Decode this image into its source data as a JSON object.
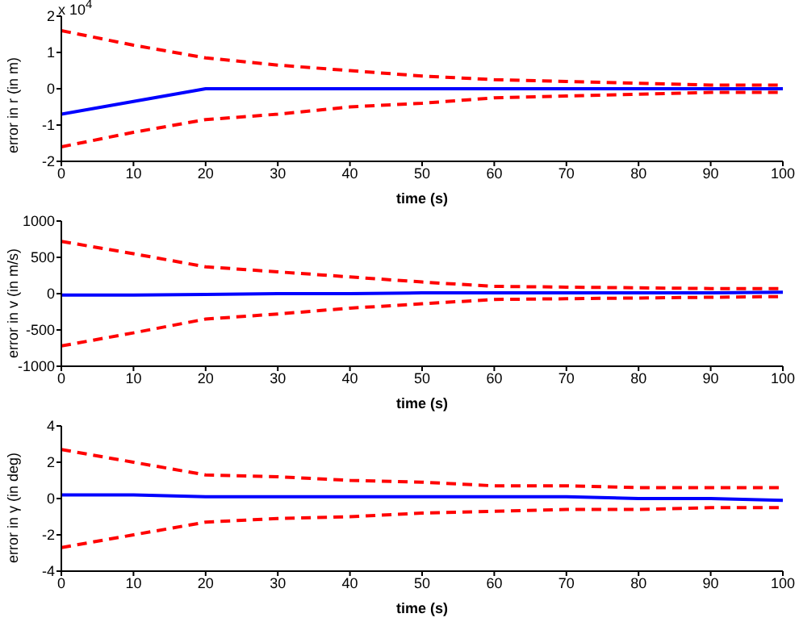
{
  "chart_data": [
    {
      "type": "line",
      "xlabel": "time (s)",
      "ylabel": "error in r (in m)",
      "annotations": [
        "x 10$^{4}$"
      ],
      "x": [
        0,
        10,
        20,
        30,
        40,
        50,
        60,
        70,
        80,
        90,
        100
      ],
      "xlim": [
        0,
        100
      ],
      "xticks": [
        0,
        10,
        20,
        30,
        40,
        50,
        60,
        70,
        80,
        90,
        100
      ],
      "ylim": [
        -2,
        2
      ],
      "yticks": [
        -2,
        -1,
        0,
        1,
        2
      ],
      "grid": false,
      "marker": "none",
      "series": [
        {
          "color": "#ff0000",
          "line_style": "dashed",
          "values": [
            1.6,
            1.2,
            0.85,
            0.65,
            0.5,
            0.35,
            0.25,
            0.2,
            0.15,
            0.1,
            0.1
          ]
        },
        {
          "color": "#ff0000",
          "line_style": "dashed",
          "values": [
            -1.6,
            -1.2,
            -0.85,
            -0.7,
            -0.5,
            -0.4,
            -0.25,
            -0.2,
            -0.15,
            -0.1,
            -0.1
          ]
        },
        {
          "color": "#0000ff",
          "line_style": "solid",
          "values": [
            -0.7,
            -0.35,
            0,
            0,
            0,
            0,
            0,
            0,
            0,
            0,
            0
          ]
        }
      ]
    },
    {
      "type": "line",
      "xlabel": "time (s)",
      "ylabel": "error in v (in m/s)",
      "x": [
        0,
        10,
        20,
        30,
        40,
        50,
        60,
        70,
        80,
        90,
        100
      ],
      "xlim": [
        0,
        100
      ],
      "xticks": [
        0,
        10,
        20,
        30,
        40,
        50,
        60,
        70,
        80,
        90,
        100
      ],
      "ylim": [
        -1000,
        1000
      ],
      "yticks": [
        -1000,
        -500,
        0,
        500,
        1000
      ],
      "grid": false,
      "marker": "none",
      "series": [
        {
          "color": "#ff0000",
          "line_style": "dashed",
          "values": [
            720,
            550,
            370,
            300,
            230,
            160,
            100,
            90,
            80,
            70,
            70
          ]
        },
        {
          "color": "#ff0000",
          "line_style": "dashed",
          "values": [
            -720,
            -540,
            -350,
            -280,
            -200,
            -140,
            -80,
            -70,
            -60,
            -50,
            -40
          ]
        },
        {
          "color": "#0000ff",
          "line_style": "solid",
          "values": [
            -20,
            -20,
            -10,
            0,
            0,
            10,
            10,
            10,
            10,
            10,
            20
          ]
        }
      ]
    },
    {
      "type": "line",
      "xlabel": "time (s)",
      "ylabel": "error in γ (in deg)",
      "x": [
        0,
        10,
        20,
        30,
        40,
        50,
        60,
        70,
        80,
        90,
        100
      ],
      "xlim": [
        0,
        100
      ],
      "xticks": [
        0,
        10,
        20,
        30,
        40,
        50,
        60,
        70,
        80,
        90,
        100
      ],
      "ylim": [
        -4,
        4
      ],
      "yticks": [
        -4,
        -2,
        0,
        2,
        4
      ],
      "grid": false,
      "marker": "none",
      "series": [
        {
          "color": "#ff0000",
          "line_style": "dashed",
          "values": [
            2.7,
            2.0,
            1.3,
            1.2,
            1.0,
            0.9,
            0.7,
            0.7,
            0.6,
            0.6,
            0.6
          ]
        },
        {
          "color": "#ff0000",
          "line_style": "dashed",
          "values": [
            -2.7,
            -2.0,
            -1.3,
            -1.1,
            -1.0,
            -0.8,
            -0.7,
            -0.6,
            -0.6,
            -0.5,
            -0.5
          ]
        },
        {
          "color": "#0000ff",
          "line_style": "solid",
          "values": [
            0.2,
            0.2,
            0.1,
            0.1,
            0.1,
            0.1,
            0.1,
            0.1,
            0,
            0,
            -0.1
          ]
        }
      ]
    }
  ]
}
